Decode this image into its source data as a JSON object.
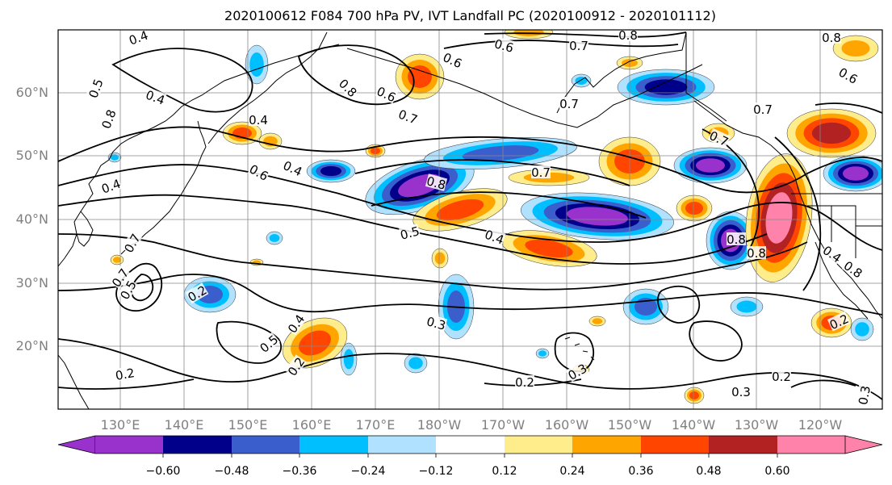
{
  "title": "2020100612 F084 700 hPa PV, IVT Landfall PC (2020100912 - 2020101112)",
  "colors": {
    "neg_060": "#9932cc",
    "neg_048": "#00008b",
    "neg_036": "#3a5fcd",
    "neg_024": "#00bfff",
    "neg_012": "#b0e2ff",
    "pos_012": "#ffec8b",
    "pos_024": "#ffa500",
    "pos_036": "#ff4500",
    "pos_048": "#b22222",
    "pos_060": "#ff82ab",
    "contour": "#000000",
    "grid": "#888888",
    "coast": "#000000"
  },
  "lat_labels": [
    "20°N",
    "30°N",
    "40°N",
    "50°N",
    "60°N"
  ],
  "lon_labels": [
    "130°E",
    "140°E",
    "150°E",
    "160°E",
    "170°E",
    "180°W",
    "170°W",
    "160°W",
    "150°W",
    "140°W",
    "130°W",
    "120°W"
  ],
  "colorbar": {
    "ticks": [
      "−0.60",
      "−0.48",
      "−0.36",
      "−0.24",
      "−0.12",
      "0.12",
      "0.24",
      "0.36",
      "0.48",
      "0.60"
    ],
    "extend": "both"
  },
  "contour_labels": [
    "0.4",
    "0.8",
    "0.7",
    "0.8",
    "0.5",
    "0.4",
    "0.7",
    "0.8",
    "0.6",
    "0.6",
    "0.8",
    "0.6",
    "0.5",
    "0.4",
    "0.4",
    "0.6",
    "0.7",
    "0.7",
    "0.7",
    "0.6",
    "0.7",
    "0.2",
    "0.4",
    "0.7",
    "0.4",
    "0.8",
    "0.8",
    "0.6",
    "0.5",
    "0.4",
    "0.8",
    "0.4",
    "0.2",
    "0.2",
    "0.2",
    "0.5",
    "0.4",
    "0.2",
    "0.3",
    "0.3",
    "0.2",
    "0.3",
    "0.2",
    "0.3",
    "0.2",
    "0.2",
    "0.2",
    "0.5",
    "0.7",
    "0.7",
    "0.5",
    "0.6",
    "0.3"
  ]
}
